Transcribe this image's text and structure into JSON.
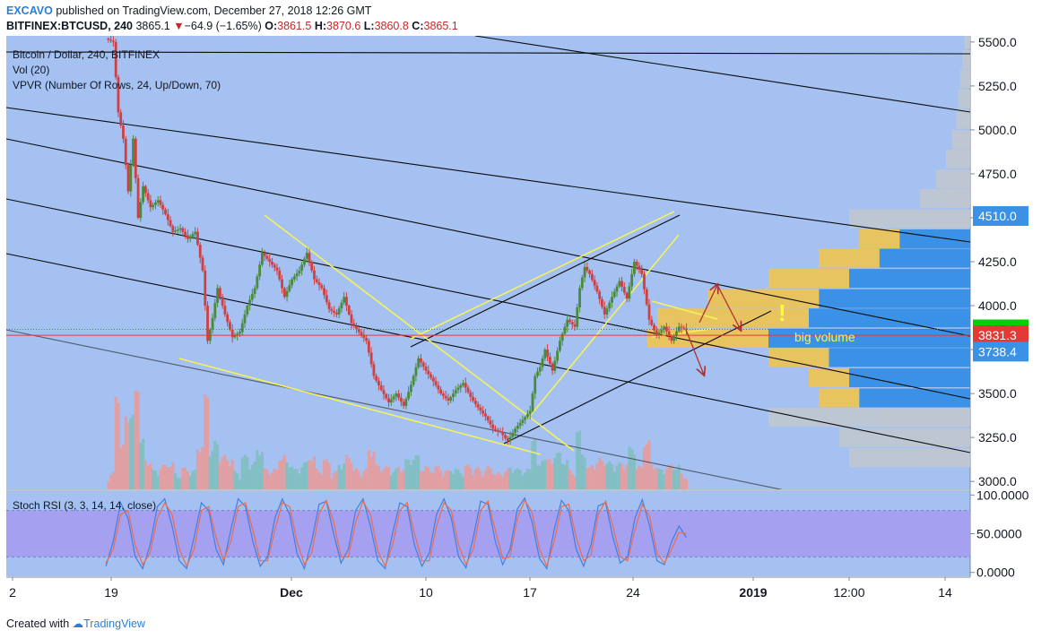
{
  "header": {
    "author": "EXCAVO",
    "published": "published on TradingView.com, December 27, 2018 12:26 GMT",
    "symbol": "BITFINEX:BTCUSD, 240",
    "last": "3865.1",
    "change": "−64.9 (−1.65%)",
    "open_label": "O:",
    "open": "3861.5",
    "high_label": "H:",
    "high": "3870.6",
    "low_label": "L:",
    "low": "3860.8",
    "close_label": "C:",
    "close": "3865.1"
  },
  "legend": {
    "main": "Bitcoin / Dollar, 240, BITFINEX",
    "vol": "Vol (20)",
    "vpvr": "VPVR (Number Of Rows, 24, Up/Down, 70)",
    "stoch": "Stoch RSI (3, 3, 14, 14, close)"
  },
  "annotations": {
    "big_volume": "big volume",
    "exclaim": "!"
  },
  "footer": {
    "created": "Created with",
    "brand": "TradingView"
  },
  "colors": {
    "background": "#a4c1f2",
    "stoch_band": "#a6a0f0",
    "up": "#4a8a3a",
    "down": "#d04040",
    "volume_up": "#7fbfbf",
    "volume_down": "#e59c9c",
    "trend_lines": "#f5f25a",
    "channel_lines": "#000000",
    "red_level": "#e53935",
    "vpvr_up": "#3a91e6",
    "vpvr_down": "#e8c461",
    "vpvr_gray": "#c3c8cb",
    "last_price_badge": "#00d000",
    "k_line": "#3f7fe0",
    "d_line": "#f06a4a"
  },
  "chart_data": [
    {
      "type": "candlestick",
      "title": "Bitcoin / Dollar, 240, BITFINEX",
      "price_axis": {
        "ticks": [
          3000,
          3250,
          3500,
          3750,
          4000,
          4250,
          4500,
          4750,
          5000,
          5250,
          5500
        ],
        "tick_labels": [
          "3000.0",
          "3250.0",
          "3500.0",
          "",
          "4000.0",
          "4250.0",
          "",
          "4750.0",
          "5000.0",
          "5250.0",
          "5500.0"
        ],
        "range": [
          2955,
          5535
        ]
      },
      "time_axis": {
        "labels": [
          "2",
          "19",
          "Dec",
          "10",
          "17",
          "24",
          "2019",
          "12:00",
          "14"
        ],
        "bold": [
          "Dec",
          "2019"
        ]
      },
      "price_badges": [
        {
          "label": "4510.0",
          "value": 4510,
          "color": "#3a91e6"
        },
        {
          "label": "3865.1",
          "value": 3865.1,
          "color": "#00d000"
        },
        {
          "label": "3831.3",
          "value": 3831.3,
          "color": "#e53935"
        },
        {
          "label": "3738.4",
          "value": 3738.4,
          "color": "#3a91e6"
        }
      ],
      "red_level": 3831.3,
      "price_path": [
        [
          "Nov 18 12:00",
          5520
        ],
        [
          "Nov 19 00:00",
          5500
        ],
        [
          "Nov 19 08:00",
          5100
        ],
        [
          "Nov 19 16:00",
          4950
        ],
        [
          "Nov 20 00:00",
          4650
        ],
        [
          "Nov 20 08:00",
          4950
        ],
        [
          "Nov 20 16:00",
          4500
        ],
        [
          "Nov 21 00:00",
          4680
        ],
        [
          "Nov 21 12:00",
          4560
        ],
        [
          "Nov 22 00:00",
          4600
        ],
        [
          "Nov 22 12:00",
          4520
        ],
        [
          "Nov 23 00:00",
          4420
        ],
        [
          "Nov 23 12:00",
          4440
        ],
        [
          "Nov 24 00:00",
          4380
        ],
        [
          "Nov 24 12:00",
          4420
        ],
        [
          "Nov 25 00:00",
          4200
        ],
        [
          "Nov 25 08:00",
          3800
        ],
        [
          "Nov 25 16:00",
          3930
        ],
        [
          "Nov 26 00:00",
          4100
        ],
        [
          "Nov 26 12:00",
          3950
        ],
        [
          "Nov 27 00:00",
          3820
        ],
        [
          "Nov 27 12:00",
          3850
        ],
        [
          "Nov 28 00:00",
          4000
        ],
        [
          "Nov 28 12:00",
          4100
        ],
        [
          "Nov 29 00:00",
          4300
        ],
        [
          "Nov 29 12:00",
          4250
        ],
        [
          "Nov 30 00:00",
          4200
        ],
        [
          "Nov 30 12:00",
          4050
        ],
        [
          "Dec 1 00:00",
          4150
        ],
        [
          "Dec 1 12:00",
          4200
        ],
        [
          "Dec 2 00:00",
          4300
        ],
        [
          "Dec 2 12:00",
          4150
        ],
        [
          "Dec 3 00:00",
          4100
        ],
        [
          "Dec 3 12:00",
          3980
        ],
        [
          "Dec 4 00:00",
          3950
        ],
        [
          "Dec 4 12:00",
          4050
        ],
        [
          "Dec 5 00:00",
          3900
        ],
        [
          "Dec 5 12:00",
          3850
        ],
        [
          "Dec 6 00:00",
          3800
        ],
        [
          "Dec 6 12:00",
          3600
        ],
        [
          "Dec 7 00:00",
          3520
        ],
        [
          "Dec 7 12:00",
          3450
        ],
        [
          "Dec 8 00:00",
          3500
        ],
        [
          "Dec 8 12:00",
          3430
        ],
        [
          "Dec 9 00:00",
          3550
        ],
        [
          "Dec 9 12:00",
          3700
        ],
        [
          "Dec 10 00:00",
          3630
        ],
        [
          "Dec 10 12:00",
          3570
        ],
        [
          "Dec 11 00:00",
          3500
        ],
        [
          "Dec 11 12:00",
          3460
        ],
        [
          "Dec 12 00:00",
          3520
        ],
        [
          "Dec 12 12:00",
          3560
        ],
        [
          "Dec 13 00:00",
          3480
        ],
        [
          "Dec 13 12:00",
          3420
        ],
        [
          "Dec 14 00:00",
          3370
        ],
        [
          "Dec 14 12:00",
          3300
        ],
        [
          "Dec 15 00:00",
          3280
        ],
        [
          "Dec 15 12:00",
          3230
        ],
        [
          "Dec 16 00:00",
          3300
        ],
        [
          "Dec 16 12:00",
          3350
        ],
        [
          "Dec 17 00:00",
          3400
        ],
        [
          "Dec 17 08:00",
          3600
        ],
        [
          "Dec 17 16:00",
          3650
        ],
        [
          "Dec 18 00:00",
          3750
        ],
        [
          "Dec 18 12:00",
          3630
        ],
        [
          "Dec 19 00:00",
          3800
        ],
        [
          "Dec 19 12:00",
          3920
        ],
        [
          "Dec 20 00:00",
          3880
        ],
        [
          "Dec 20 08:00",
          4100
        ],
        [
          "Dec 20 16:00",
          4220
        ],
        [
          "Dec 21 00:00",
          4180
        ],
        [
          "Dec 21 12:00",
          4080
        ],
        [
          "Dec 22 00:00",
          3950
        ],
        [
          "Dec 22 12:00",
          4050
        ],
        [
          "Dec 23 00:00",
          4140
        ],
        [
          "Dec 23 12:00",
          4040
        ],
        [
          "Dec 24 00:00",
          4250
        ],
        [
          "Dec 24 12:00",
          4180
        ],
        [
          "Dec 25 00:00",
          3920
        ],
        [
          "Dec 25 12:00",
          3830
        ],
        [
          "Dec 26 00:00",
          3880
        ],
        [
          "Dec 26 12:00",
          3800
        ],
        [
          "Dec 27 00:00",
          3880
        ],
        [
          "Dec 27 12:00",
          3865.1
        ]
      ]
    },
    {
      "type": "bar",
      "title": "VPVR (Number Of Rows, 24, Up/Down, 70)",
      "note": "horizontal volume-by-price rows; up = blue, down = yellow, outside value area = gray",
      "rows": [
        {
          "price": 3135,
          "up": 0.25,
          "down": 0.35,
          "value_area": false
        },
        {
          "price": 3250,
          "up": 0.3,
          "down": 0.35,
          "value_area": false
        },
        {
          "price": 3365,
          "up": 0.45,
          "down": 0.55,
          "value_area": false
        },
        {
          "price": 3475,
          "up": 0.55,
          "down": 0.2,
          "value_area": true
        },
        {
          "price": 3590,
          "up": 0.6,
          "down": 0.2,
          "value_area": true
        },
        {
          "price": 3705,
          "up": 0.7,
          "down": 0.3,
          "value_area": true
        },
        {
          "price": 3815,
          "up": 1.0,
          "down": 0.6,
          "value_area": true
        },
        {
          "price": 3930,
          "up": 0.8,
          "down": 0.75,
          "value_area": true
        },
        {
          "price": 4040,
          "up": 0.75,
          "down": 0.55,
          "value_area": true
        },
        {
          "price": 4155,
          "up": 0.6,
          "down": 0.4,
          "value_area": true
        },
        {
          "price": 4270,
          "up": 0.45,
          "down": 0.3,
          "value_area": true
        },
        {
          "price": 4380,
          "up": 0.35,
          "down": 0.2,
          "value_area": true
        },
        {
          "price": 4495,
          "up": 0.2,
          "down": 0.4,
          "value_area": false
        },
        {
          "price": 4610,
          "up": 0.1,
          "down": 0.15,
          "value_area": false
        },
        {
          "price": 4720,
          "up": 0.12,
          "down": 0.05,
          "value_area": false
        },
        {
          "price": 4835,
          "up": 0.08,
          "down": 0.04,
          "value_area": false
        },
        {
          "price": 4945,
          "up": 0.06,
          "down": 0.03,
          "value_area": false
        },
        {
          "price": 5060,
          "up": 0.05,
          "down": 0.02,
          "value_area": false
        },
        {
          "price": 5175,
          "up": 0.04,
          "down": 0.02,
          "value_area": false
        },
        {
          "price": 5290,
          "up": 0.03,
          "down": 0.02,
          "value_area": false
        },
        {
          "price": 5400,
          "up": 0.03,
          "down": 0.01,
          "value_area": false
        },
        {
          "price": 5515,
          "up": 0.02,
          "down": 0.01,
          "value_area": false
        }
      ]
    },
    {
      "type": "line",
      "title": "Stoch RSI (3, 3, 14, 14, close)",
      "y_axis": {
        "ticks": [
          0,
          50,
          100
        ],
        "tick_labels": [
          "0.0000",
          "50.0000",
          "100.0000"
        ],
        "range": [
          -5,
          105
        ],
        "band": [
          20,
          80
        ]
      },
      "series": [
        {
          "values": [
            8,
            40,
            90,
            70,
            20,
            5,
            35,
            85,
            95,
            60,
            15,
            5,
            45,
            90,
            80,
            30,
            10,
            55,
            95,
            85,
            40,
            8,
            20,
            70,
            95,
            75,
            25,
            5,
            40,
            88,
            92,
            50,
            12,
            30,
            80,
            95,
            60,
            15,
            5,
            50,
            90,
            85,
            35,
            8,
            25,
            75,
            95,
            70,
            20,
            6,
            45,
            92,
            88,
            40,
            10,
            30,
            82,
            96,
            65,
            18,
            5,
            55,
            93,
            80,
            30,
            8,
            35,
            86,
            90,
            45,
            12,
            20,
            70,
            94,
            60,
            15,
            10,
            40,
            60,
            45
          ]
        },
        {
          "values": [
            12,
            30,
            75,
            80,
            35,
            10,
            25,
            70,
            90,
            75,
            30,
            8,
            30,
            80,
            85,
            45,
            15,
            40,
            85,
            90,
            55,
            15,
            15,
            55,
            90,
            85,
            40,
            10,
            25,
            75,
            93,
            65,
            20,
            20,
            65,
            92,
            75,
            28,
            8,
            35,
            80,
            90,
            50,
            15,
            15,
            60,
            90,
            80,
            35,
            10,
            30,
            80,
            92,
            55,
            18,
            20,
            70,
            93,
            78,
            30,
            8,
            40,
            85,
            88,
            45,
            15,
            22,
            75,
            92,
            60,
            20,
            15,
            55,
            88,
            72,
            25,
            12,
            30,
            52,
            50
          ]
        }
      ]
    }
  ]
}
